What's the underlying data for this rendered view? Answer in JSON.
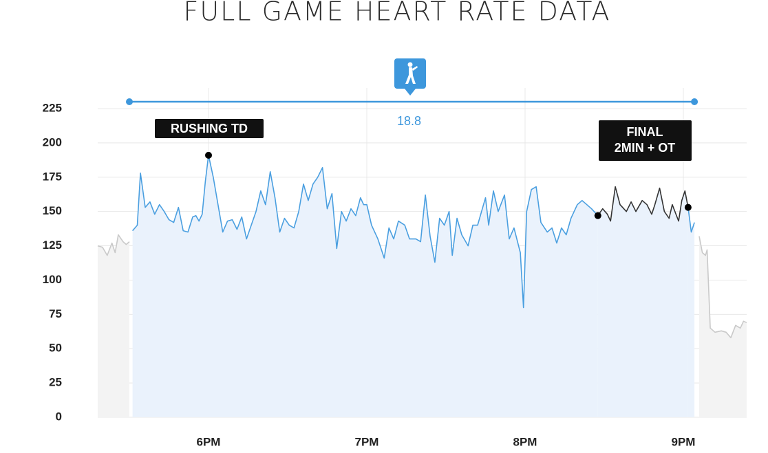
{
  "chart_data": {
    "type": "line",
    "title": "FULL GAME HEART RATE DATA",
    "xlim": [
      17.3,
      21.4
    ],
    "xticks": [
      {
        "value": 18,
        "label": "6PM"
      },
      {
        "value": 19,
        "label": "7PM"
      },
      {
        "value": 20,
        "label": "8PM"
      },
      {
        "value": 21,
        "label": "9PM"
      }
    ],
    "ylim": [
      0,
      225
    ],
    "yticks": [
      0,
      25,
      50,
      75,
      100,
      125,
      150,
      175,
      200,
      225
    ],
    "grid": true,
    "series": [
      {
        "color": "#c9c9c9",
        "fill": "#f3f3f3",
        "x": [
          17.3,
          17.33,
          17.36,
          17.39,
          17.41,
          17.43,
          17.46,
          17.48,
          17.5
        ],
        "values": [
          125,
          124,
          118,
          127,
          120,
          133,
          128,
          126,
          128
        ]
      },
      {
        "color": "#4a9fe0",
        "fill": "#eaf2fc",
        "x": [
          17.52,
          17.55,
          17.57,
          17.6,
          17.63,
          17.66,
          17.69,
          17.72,
          17.75,
          17.78,
          17.81,
          17.84,
          17.87,
          17.9,
          17.92,
          17.94,
          17.96,
          17.98,
          18.0,
          18.03,
          18.06,
          18.09,
          18.12,
          18.15,
          18.18,
          18.21,
          18.24,
          18.27,
          18.3,
          18.33,
          18.36,
          18.39,
          18.42,
          18.45,
          18.48,
          18.51,
          18.54,
          18.57,
          18.6,
          18.63,
          18.66,
          18.69,
          18.72,
          18.75,
          18.78,
          18.81,
          18.84,
          18.87,
          18.9,
          18.93,
          18.96,
          18.98,
          19.0,
          19.03,
          19.07,
          19.11,
          19.14,
          19.17,
          19.2,
          19.24,
          19.27,
          19.31,
          19.34,
          19.37,
          19.4,
          19.43,
          19.46,
          19.49,
          19.52,
          19.54,
          19.57,
          19.6,
          19.64,
          19.67,
          19.7,
          19.75,
          19.77,
          19.8,
          19.83,
          19.87,
          19.9,
          19.93,
          19.97,
          19.99,
          20.01,
          20.04,
          20.07,
          20.1,
          20.14,
          20.17,
          20.2,
          20.23,
          20.26,
          20.29,
          20.33,
          20.36,
          20.39,
          20.42,
          20.46
        ],
        "values": [
          136,
          140,
          178,
          153,
          157,
          148,
          155,
          150,
          144,
          142,
          153,
          136,
          135,
          146,
          147,
          143,
          148,
          172,
          191,
          175,
          155,
          135,
          143,
          144,
          137,
          146,
          130,
          140,
          150,
          165,
          155,
          179,
          160,
          135,
          145,
          140,
          138,
          150,
          170,
          158,
          170,
          175,
          182,
          152,
          163,
          123,
          150,
          143,
          152,
          147,
          160,
          155,
          155,
          140,
          130,
          116,
          138,
          130,
          143,
          140,
          130,
          130,
          128,
          162,
          132,
          113,
          145,
          140,
          150,
          118,
          145,
          133,
          125,
          140,
          140,
          160,
          140,
          165,
          150,
          162,
          130,
          138,
          120,
          80,
          150,
          166,
          168,
          142,
          135,
          138,
          127,
          138,
          133,
          145,
          155,
          158,
          155,
          152,
          147
        ]
      },
      {
        "color": "#333333",
        "fill": "#eaf2fc",
        "x": [
          20.46,
          20.49,
          20.52,
          20.54,
          20.57,
          20.6,
          20.64,
          20.67,
          20.7,
          20.74,
          20.77,
          20.8,
          20.82,
          20.85,
          20.88,
          20.91,
          20.93,
          20.97,
          20.99,
          21.01,
          21.03
        ],
        "values": [
          147,
          152,
          148,
          143,
          168,
          155,
          150,
          157,
          150,
          158,
          155,
          148,
          155,
          167,
          150,
          145,
          155,
          143,
          158,
          165,
          153
        ]
      },
      {
        "color": "#4a9fe0",
        "fill": "#eaf2fc",
        "x": [
          21.03,
          21.05,
          21.07
        ],
        "values": [
          153,
          135,
          142
        ]
      },
      {
        "color": "#c9c9c9",
        "fill": "#f3f3f3",
        "x": [
          21.1,
          21.12,
          21.14,
          21.15,
          21.17,
          21.2,
          21.24,
          21.27,
          21.3,
          21.33,
          21.36,
          21.38,
          21.4
        ],
        "values": [
          132,
          120,
          118,
          122,
          65,
          62,
          63,
          62,
          58,
          67,
          65,
          70,
          69
        ]
      }
    ],
    "span": {
      "start": 17.5,
      "end": 21.07,
      "label": "18.8"
    },
    "annotations": [
      {
        "lines": [
          "RUSHING TD"
        ],
        "points": [
          {
            "x": 18.0,
            "y": 191
          }
        ]
      },
      {
        "lines": [
          "FINAL",
          "2MIN + OT"
        ],
        "points": [
          {
            "x": 20.46,
            "y": 147
          },
          {
            "x": 21.03,
            "y": 153
          }
        ]
      }
    ]
  }
}
